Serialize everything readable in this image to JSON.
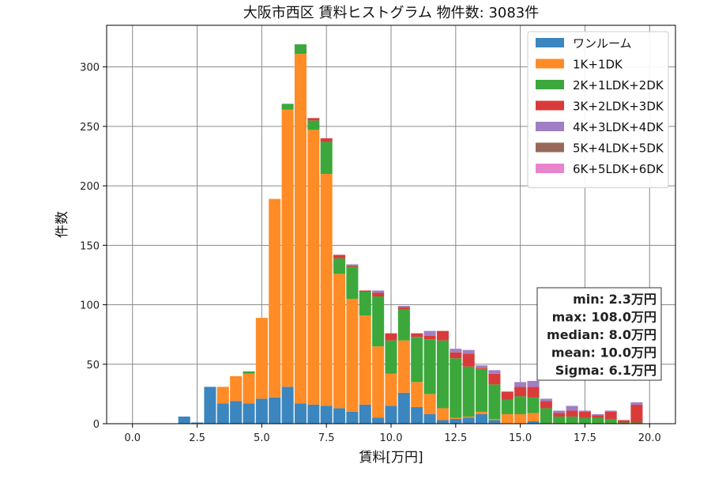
{
  "chart_data": {
    "type": "bar",
    "title": "大阪市西区 賃料ヒストグラム 物件数: 3083件",
    "xlabel": "賃料[万円]",
    "ylabel": "件数",
    "xlim": [
      -1.0,
      21.0
    ],
    "ylim": [
      0,
      335
    ],
    "xticks": [
      0.0,
      2.5,
      5.0,
      7.5,
      10.0,
      12.5,
      15.0,
      17.5,
      20.0
    ],
    "xtick_labels": [
      "0.0",
      "2.5",
      "5.0",
      "7.5",
      "10.0",
      "12.5",
      "15.0",
      "17.5",
      "20.0"
    ],
    "yticks": [
      0,
      50,
      100,
      150,
      200,
      250,
      300
    ],
    "ytick_labels": [
      "0",
      "50",
      "100",
      "150",
      "200",
      "250",
      "300"
    ],
    "grid": true,
    "legend_position": "top-right",
    "stacked": true,
    "bin_width": 0.5,
    "bin_start": 1.75,
    "colors": [
      "#3b86bf",
      "#ff8c26",
      "#3ca83c",
      "#d93b3b",
      "#a07fc5",
      "#98695a",
      "#e883cc"
    ],
    "series": [
      {
        "name": "ワンルーム",
        "values": [
          6,
          1,
          31,
          17,
          19,
          17,
          21,
          22,
          31,
          17,
          16,
          15,
          13,
          10,
          16,
          5,
          15,
          26,
          14,
          8,
          3,
          4,
          5,
          8,
          3,
          0,
          0,
          2,
          0,
          0,
          0,
          0,
          0,
          0,
          0,
          0
        ]
      },
      {
        "name": "1K+1DK",
        "values": [
          0,
          0,
          0,
          14,
          21,
          25,
          68,
          167,
          233,
          294,
          231,
          195,
          113,
          95,
          75,
          60,
          27,
          44,
          21,
          17,
          10,
          1,
          1,
          2,
          1,
          8,
          8,
          7,
          0,
          0,
          0,
          0,
          0,
          0,
          0,
          0
        ]
      },
      {
        "name": "2K+1LDK+2DK",
        "values": [
          0,
          0,
          0,
          0,
          0,
          2,
          0,
          0,
          5,
          8,
          8,
          27,
          13,
          27,
          20,
          42,
          28,
          26,
          38,
          46,
          57,
          50,
          42,
          36,
          29,
          12,
          15,
          13,
          13,
          6,
          6,
          5,
          5,
          4,
          1,
          1
        ]
      },
      {
        "name": "3K+2LDK+3DK",
        "values": [
          0,
          0,
          0,
          0,
          0,
          0,
          0,
          0,
          0,
          0,
          2,
          3,
          3,
          1,
          1,
          3,
          6,
          2,
          3,
          3,
          8,
          5,
          11,
          1,
          9,
          7,
          8,
          9,
          6,
          3,
          5,
          5,
          2,
          6,
          2,
          15
        ]
      },
      {
        "name": "4K+3LDK+4DK",
        "values": [
          0,
          0,
          0,
          0,
          0,
          0,
          0,
          0,
          0,
          0,
          0,
          0,
          0,
          1,
          0,
          2,
          0,
          1,
          0,
          4,
          0,
          3,
          3,
          2,
          3,
          0,
          4,
          5,
          2,
          2,
          4,
          1,
          1,
          1,
          0,
          2
        ]
      },
      {
        "name": "5K+4LDK+5DK",
        "values": [
          0,
          0,
          0,
          0,
          0,
          0,
          0,
          0,
          0,
          0,
          0,
          0,
          0,
          0,
          0,
          0,
          0,
          0,
          0,
          0,
          0,
          0,
          0,
          0,
          0,
          0,
          0,
          0,
          0,
          0,
          0,
          0,
          0,
          0,
          0,
          0
        ]
      },
      {
        "name": "6K+5LDK+6DK",
        "values": [
          0,
          0,
          0,
          0,
          0,
          0,
          0,
          0,
          0,
          0,
          0,
          0,
          0,
          0,
          0,
          0,
          0,
          0,
          0,
          0,
          0,
          0,
          0,
          0,
          0,
          0,
          0,
          0,
          0,
          0,
          0,
          0,
          0,
          0,
          0,
          0
        ]
      }
    ],
    "annotations": [
      "min: 2.3万円",
      "max: 108.0万円",
      "median: 8.0万円",
      "mean: 10.0万円",
      "Sigma: 6.1万円"
    ]
  }
}
